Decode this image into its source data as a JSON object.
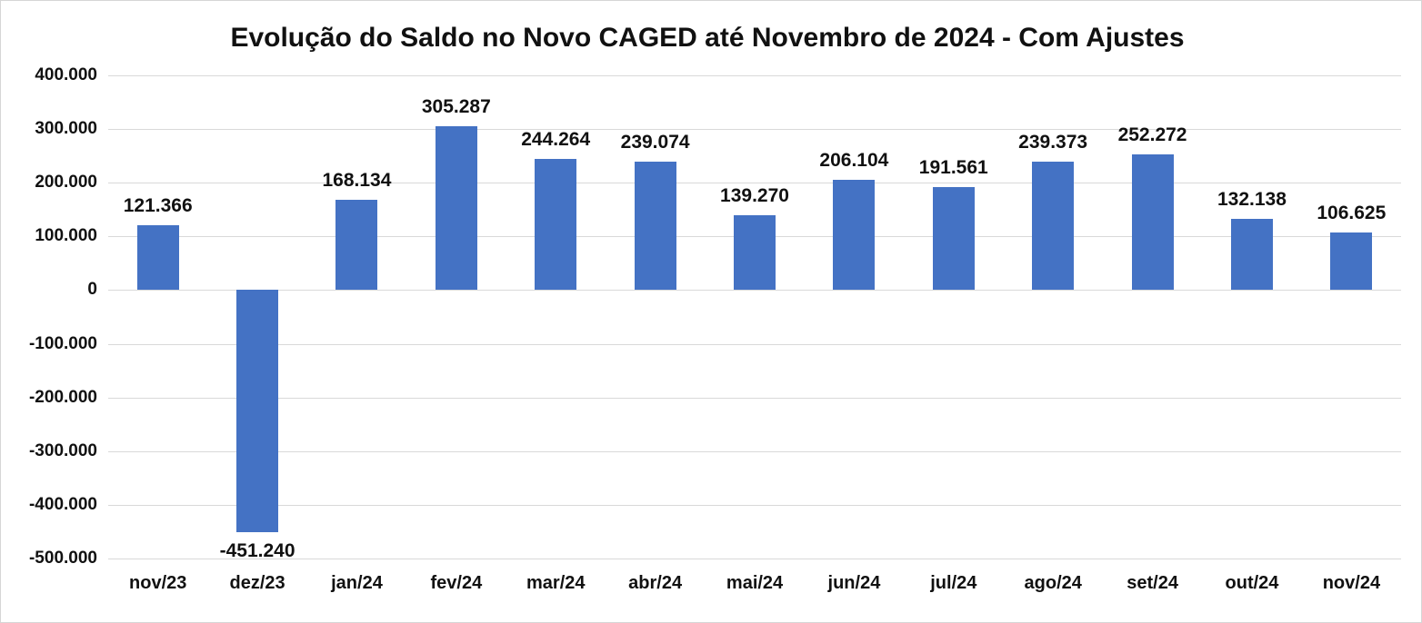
{
  "chart_data": {
    "type": "bar",
    "title": "Evolução do Saldo no Novo CAGED até Novembro de 2024 - Com Ajustes",
    "categories": [
      "nov/23",
      "dez/23",
      "jan/24",
      "fev/24",
      "mar/24",
      "abr/24",
      "mai/24",
      "jun/24",
      "jul/24",
      "ago/24",
      "set/24",
      "out/24",
      "nov/24"
    ],
    "values": [
      121366,
      -451240,
      168134,
      305287,
      244264,
      239074,
      139270,
      206104,
      191561,
      239373,
      252272,
      132138,
      106625
    ],
    "value_labels": [
      "121.366",
      "-451.240",
      "168.134",
      "305.287",
      "244.264",
      "239.074",
      "139.270",
      "206.104",
      "191.561",
      "239.373",
      "252.272",
      "132.138",
      "106.625"
    ],
    "xlabel": "",
    "ylabel": "",
    "ylim": [
      -500000,
      400000
    ],
    "ytick_step": 100000,
    "ytick_labels": [
      "400.000",
      "300.000",
      "200.000",
      "100.000",
      "0",
      "-100.000",
      "-200.000",
      "-300.000",
      "-400.000",
      "-500.000"
    ],
    "grid": true,
    "legend": false,
    "bar_color": "#4472C4",
    "gridline_color": "#d9d9d9",
    "background_color": "#ffffff",
    "text_color": "#111111"
  }
}
